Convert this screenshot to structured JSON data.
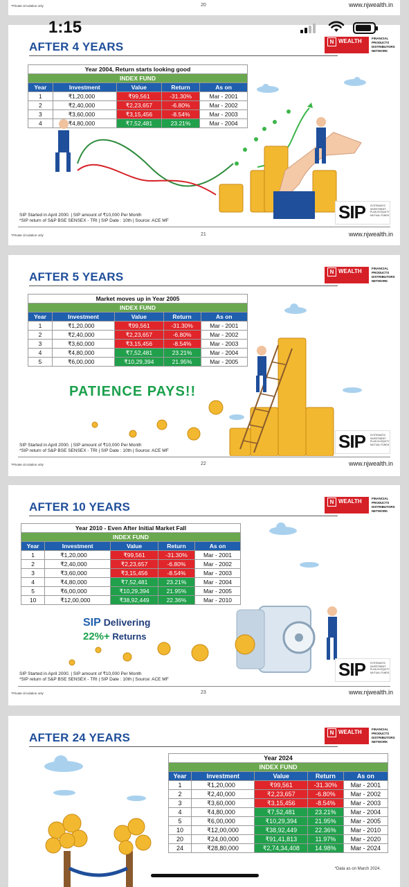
{
  "status_bar": {
    "time": "1:15"
  },
  "prev_slide_footer": {
    "private": "*Private circulation only",
    "page": "20",
    "url": "www.njwealth.in"
  },
  "logo": {
    "mark": "N",
    "brand": "WEALTH",
    "tagline": "FINANCIAL PRODUCTS DISTRIBUTORS NETWORK"
  },
  "sip_badge": {
    "text": "SIP",
    "tagline": "SYSTEMATIC INVESTMENT PLAN IN EQUITY MUTUAL FUNDS"
  },
  "common": {
    "col_headers": [
      "Year",
      "Investment",
      "Value",
      "Return",
      "As on"
    ],
    "fund_label": "INDEX FUND",
    "private": "*Private circulation only",
    "url": "www.njwealth.in"
  },
  "slides": [
    {
      "title": "AFTER 4 YEARS",
      "table_title": "Year 2004, Return starts looking good",
      "rows": [
        {
          "year": "1",
          "investment": "₹1,20,000",
          "value": "₹99,561",
          "ret": "-31.30%",
          "as_on": "Mar - 2001",
          "pos": false
        },
        {
          "year": "2",
          "investment": "₹2,40,000",
          "value": "₹2,23,657",
          "ret": "-6.80%",
          "as_on": "Mar - 2002",
          "pos": false
        },
        {
          "year": "3",
          "investment": "₹3,60,000",
          "value": "₹3,15,456",
          "ret": "-8.54%",
          "as_on": "Mar - 2003",
          "pos": false
        },
        {
          "year": "4",
          "investment": "₹4,80,000",
          "value": "₹7,52,481",
          "ret": "23.21%",
          "as_on": "Mar - 2004",
          "pos": true
        }
      ],
      "foot1": "SIP Started in April 2000. | SIP amount of ₹10,000 Per Month",
      "foot2": "*SIP return of S&P BSE SENSEX - TRI | SIP Date : 10th | Source: ACE MF",
      "page": "21"
    },
    {
      "title": "AFTER 5 YEARS",
      "table_title": "Market moves up in Year 2005",
      "rows": [
        {
          "year": "1",
          "investment": "₹1,20,000",
          "value": "₹99,561",
          "ret": "-31.30%",
          "as_on": "Mar - 2001",
          "pos": false
        },
        {
          "year": "2",
          "investment": "₹2,40,000",
          "value": "₹2,23,657",
          "ret": "-6.80%",
          "as_on": "Mar - 2002",
          "pos": false
        },
        {
          "year": "3",
          "investment": "₹3,60,000",
          "value": "₹3,15,456",
          "ret": "-8.54%",
          "as_on": "Mar - 2003",
          "pos": false
        },
        {
          "year": "4",
          "investment": "₹4,80,000",
          "value": "₹7,52,481",
          "ret": "23.21%",
          "as_on": "Mar - 2004",
          "pos": true
        },
        {
          "year": "5",
          "investment": "₹6,00,000",
          "value": "₹10,29,394",
          "ret": "21.95%",
          "as_on": "Mar - 2005",
          "pos": true
        }
      ],
      "slogan": "PATIENCE PAYS!!",
      "foot1": "SIP Started in April 2000. | SIP amount of ₹10,000 Per Month",
      "foot2": "*SIP return of S&P BSE SENSEX - TRI | SIP Date : 10th | Source: ACE MF",
      "page": "22"
    },
    {
      "title": "AFTER 10 YEARS",
      "table_title": "Year 2010 - Even After Initial Market Fall",
      "rows": [
        {
          "year": "1",
          "investment": "₹1,20,000",
          "value": "₹99,561",
          "ret": "-31.30%",
          "as_on": "Mar - 2001",
          "pos": false
        },
        {
          "year": "2",
          "investment": "₹2,40,000",
          "value": "₹2,23,657",
          "ret": "-6.80%",
          "as_on": "Mar - 2002",
          "pos": false
        },
        {
          "year": "3",
          "investment": "₹3,60,000",
          "value": "₹3,15,456",
          "ret": "-8.54%",
          "as_on": "Mar - 2003",
          "pos": false
        },
        {
          "year": "4",
          "investment": "₹4,80,000",
          "value": "₹7,52,481",
          "ret": "23.21%",
          "as_on": "Mar - 2004",
          "pos": true
        },
        {
          "year": "5",
          "investment": "₹6,00,000",
          "value": "₹10,29,394",
          "ret": "21.95%",
          "as_on": "Mar - 2005",
          "pos": true
        },
        {
          "year": "10",
          "investment": "₹12,00,000",
          "value": "₹38,92,449",
          "ret": "22.36%",
          "as_on": "Mar - 2010",
          "pos": true
        }
      ],
      "slogan_sip": "SIP",
      "slogan_rest": "Delivering",
      "slogan_pct": "22%+",
      "slogan_returns": "Returns",
      "foot1": "SIP Started in April 2000. | SIP amount of ₹10,000 Per Month",
      "foot2": "*SIP return of S&P BSE SENSEX - TRI | SIP Date : 10th | Source: ACE MF",
      "page": "23"
    },
    {
      "title": "AFTER 24 YEARS",
      "table_title": "Year 2024",
      "rows": [
        {
          "year": "1",
          "investment": "₹1,20,000",
          "value": "₹99,561",
          "ret": "-31.30%",
          "as_on": "Mar - 2001",
          "pos": false
        },
        {
          "year": "2",
          "investment": "₹2,40,000",
          "value": "₹2,23,657",
          "ret": "-6.80%",
          "as_on": "Mar - 2002",
          "pos": false
        },
        {
          "year": "3",
          "investment": "₹3,60,000",
          "value": "₹3,15,456",
          "ret": "-8.54%",
          "as_on": "Mar - 2003",
          "pos": false
        },
        {
          "year": "4",
          "investment": "₹4,80,000",
          "value": "₹7,52,481",
          "ret": "23.21%",
          "as_on": "Mar - 2004",
          "pos": true
        },
        {
          "year": "5",
          "investment": "₹6,00,000",
          "value": "₹10,29,394",
          "ret": "21.95%",
          "as_on": "Mar - 2005",
          "pos": true
        },
        {
          "year": "10",
          "investment": "₹12,00,000",
          "value": "₹38,92,449",
          "ret": "22.36%",
          "as_on": "Mar - 2010",
          "pos": true
        },
        {
          "year": "20",
          "investment": "₹24,00,000",
          "value": "₹91,41,813",
          "ret": "11.97%",
          "as_on": "Mar - 2020",
          "pos": true
        },
        {
          "year": "24",
          "investment": "₹28,80,000",
          "value": "₹2,74,34,408",
          "ret": "14.98%",
          "as_on": "Mar - 2024",
          "pos": true
        }
      ],
      "note": "*Data as on March 2024."
    }
  ],
  "colors": {
    "title_blue": "#1f4e9a",
    "fund_green": "#6aa84f",
    "header_blue": "#1f5fad",
    "neg_red": "#e0262b",
    "pos_green": "#20a04b",
    "brand_red": "#d62027"
  }
}
